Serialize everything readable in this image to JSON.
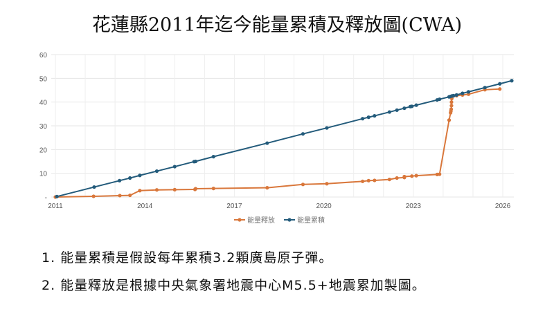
{
  "title": "花蓮縣2011年迄今能量累積及釋放圖(CWA)",
  "notes": [
    "1. 能量累積是假設每年累積3.2顆廣島原子彈。",
    "2. 能量釋放是根據中央氣象署地震中心M5.5+地震累加製圖。"
  ],
  "chart_data": {
    "type": "line",
    "title": "花蓮縣2011年迄今能量累積及釋放圖(CWA)",
    "xlabel": "",
    "ylabel": "",
    "xlim": [
      2011,
      2026.3
    ],
    "ylim": [
      0,
      60
    ],
    "xticks": [
      "2011",
      "2014",
      "2017",
      "2020",
      "2023",
      "2026"
    ],
    "yticks": [
      "-",
      "10",
      "20",
      "30",
      "40",
      "50",
      "60"
    ],
    "grid": true,
    "legend": "bottom",
    "series": [
      {
        "name": "能量釋放",
        "color": "#d9773b",
        "points": [
          [
            2011.0,
            0
          ],
          [
            2012.28,
            0.3
          ],
          [
            2013.16,
            0.6
          ],
          [
            2013.5,
            0.7
          ],
          [
            2013.83,
            2.7
          ],
          [
            2014.4,
            3.0
          ],
          [
            2015.0,
            3.1
          ],
          [
            2015.68,
            3.2
          ],
          [
            2015.7,
            3.5
          ],
          [
            2016.3,
            3.6
          ],
          [
            2018.1,
            3.9
          ],
          [
            2019.3,
            5.3
          ],
          [
            2020.1,
            5.6
          ],
          [
            2021.3,
            6.6
          ],
          [
            2021.5,
            6.9
          ],
          [
            2021.7,
            7.0
          ],
          [
            2022.2,
            7.4
          ],
          [
            2022.45,
            8.0
          ],
          [
            2022.7,
            8.2
          ],
          [
            2022.7,
            8.6
          ],
          [
            2022.95,
            8.8
          ],
          [
            2023.1,
            9.0
          ],
          [
            2023.8,
            9.5
          ],
          [
            2023.88,
            9.6
          ],
          [
            2024.2,
            32.4
          ],
          [
            2024.25,
            35.5
          ],
          [
            2024.26,
            36.2
          ],
          [
            2024.27,
            37.0
          ],
          [
            2024.28,
            38.5
          ],
          [
            2024.28,
            40.0
          ],
          [
            2024.29,
            41.5
          ],
          [
            2024.3,
            42.3
          ],
          [
            2024.45,
            42.7
          ],
          [
            2024.65,
            43.0
          ],
          [
            2024.85,
            43.3
          ],
          [
            2025.4,
            45.2
          ],
          [
            2025.9,
            45.5
          ]
        ]
      },
      {
        "name": "能量累積",
        "color": "#235b7b",
        "points": [
          [
            2011.05,
            0.2
          ],
          [
            2012.3,
            4.2
          ],
          [
            2013.15,
            6.9
          ],
          [
            2013.5,
            8.0
          ],
          [
            2013.83,
            9.1
          ],
          [
            2014.4,
            10.9
          ],
          [
            2015.0,
            12.8
          ],
          [
            2015.65,
            14.9
          ],
          [
            2015.7,
            15.0
          ],
          [
            2016.3,
            17.0
          ],
          [
            2018.1,
            22.7
          ],
          [
            2019.3,
            26.6
          ],
          [
            2020.1,
            29.1
          ],
          [
            2021.3,
            33.0
          ],
          [
            2021.5,
            33.6
          ],
          [
            2021.7,
            34.2
          ],
          [
            2022.2,
            35.8
          ],
          [
            2022.45,
            36.6
          ],
          [
            2022.7,
            37.4
          ],
          [
            2022.9,
            38.1
          ],
          [
            2022.95,
            38.2
          ],
          [
            2023.1,
            38.7
          ],
          [
            2023.8,
            40.9
          ],
          [
            2023.88,
            41.2
          ],
          [
            2024.2,
            42.2
          ],
          [
            2024.25,
            42.4
          ],
          [
            2024.3,
            42.6
          ],
          [
            2024.35,
            42.7
          ],
          [
            2024.45,
            43.0
          ],
          [
            2024.65,
            43.7
          ],
          [
            2024.85,
            44.3
          ],
          [
            2025.4,
            46.1
          ],
          [
            2025.9,
            47.7
          ],
          [
            2026.3,
            49.0
          ]
        ]
      }
    ]
  }
}
